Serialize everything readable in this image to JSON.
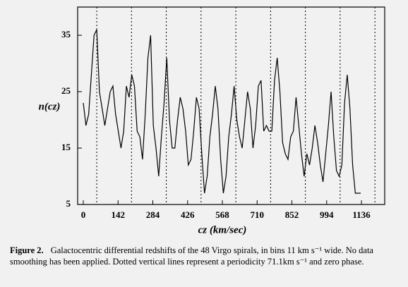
{
  "chart_data": {
    "type": "line",
    "ylabel": "n(cz)",
    "xlabel": "cz (km/sec)",
    "xlim": [
      -23,
      1231
    ],
    "ylim": [
      5,
      40
    ],
    "xticks": [
      0,
      142,
      284,
      426,
      568,
      710,
      852,
      994,
      1136
    ],
    "yticks": [
      5,
      15,
      25,
      35
    ],
    "reference_lines": [
      55,
      197,
      339,
      481,
      623,
      765,
      907,
      1049,
      1191
    ],
    "x": [
      0,
      11,
      22,
      33,
      44,
      55,
      66,
      77,
      88,
      99,
      110,
      121,
      132,
      143,
      154,
      165,
      176,
      187,
      198,
      209,
      220,
      231,
      242,
      253,
      264,
      275,
      286,
      297,
      308,
      319,
      330,
      341,
      352,
      363,
      374,
      385,
      396,
      407,
      418,
      429,
      440,
      451,
      462,
      473,
      484,
      495,
      506,
      517,
      528,
      539,
      550,
      561,
      572,
      583,
      594,
      605,
      616,
      627,
      638,
      649,
      660,
      671,
      682,
      693,
      704,
      715,
      726,
      737,
      748,
      759,
      770,
      781,
      792,
      803,
      814,
      825,
      836,
      847,
      858,
      869,
      880,
      891,
      902,
      913,
      924,
      935,
      946,
      957,
      968,
      979,
      990,
      1001,
      1012,
      1023,
      1034,
      1045,
      1056,
      1067,
      1078,
      1089,
      1100,
      1111,
      1122,
      1133
    ],
    "values": [
      23,
      19,
      21,
      28,
      35,
      36,
      25,
      22,
      19,
      22,
      25,
      26,
      21,
      18,
      15,
      18,
      26,
      24,
      28,
      26,
      18,
      17,
      13,
      21,
      31,
      35,
      19,
      15,
      10,
      17,
      23,
      31,
      20,
      15,
      15,
      20,
      24,
      22,
      18,
      12,
      13,
      18,
      24,
      22,
      14,
      7,
      10,
      17,
      21,
      26,
      22,
      13,
      7,
      10,
      17,
      21,
      26,
      20,
      17,
      15,
      20,
      25,
      22,
      15,
      19,
      26,
      27,
      18,
      19,
      18,
      18,
      27,
      31,
      25,
      16,
      14,
      13,
      17,
      18,
      24,
      19,
      14,
      10,
      14,
      12,
      15,
      19,
      16,
      12,
      9,
      14,
      19,
      25,
      17,
      11,
      10,
      12,
      23,
      28,
      22,
      12,
      7,
      7,
      7
    ],
    "color": "#000000"
  },
  "caption": {
    "label": "Figure 2.",
    "text": "Galactocentric differential redshifts of the 48 Virgo spirals, in bins 11 km s⁻¹ wide. No data smoothing has been applied. Dotted vertical lines represent a periodicity 71.1km s⁻¹ and zero phase."
  }
}
